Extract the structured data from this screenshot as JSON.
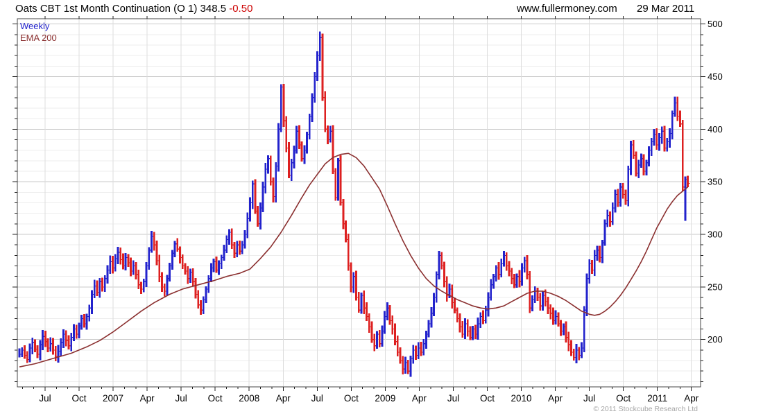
{
  "header": {
    "title_main": "Oats CBT 1st Month Continuation (O 1) 348.5",
    "change": "-0.50",
    "website": "www.fullermoney.com",
    "date": "29 Mar 2011"
  },
  "legend": {
    "series1": "Weekly",
    "series2": "EMA 200"
  },
  "footer": {
    "copyright": "© 2011 Stockcube Research Ltd"
  },
  "colors": {
    "up_bar": "#2222cc",
    "down_bar": "#dd2020",
    "ema_line": "#8b3030",
    "change_text": "#cc0000",
    "grid_minor": "#ededed",
    "grid_major": "#c9c9c9",
    "grid_vertical": "#dddddd",
    "axis": "#444444",
    "tick": "#222222",
    "label": "#000000",
    "copyright": "#a6a6a6"
  },
  "chart_data": {
    "type": "bar",
    "subtype": "weekly-price-bars-with-ema",
    "title": "Oats CBT 1st Month Continuation (O 1)",
    "last_price": 348.5,
    "change": -0.5,
    "frequency": "weekly",
    "x_span": "Apr 2006 - Mar 2011",
    "ylim": [
      155,
      505
    ],
    "y_major_ticks": [
      200,
      250,
      300,
      350,
      400,
      450,
      500
    ],
    "y_minor_step": 10,
    "grid": "on",
    "legend_position": "top-left",
    "x_tick_labels": [
      "Jul",
      "Oct",
      "2007",
      "Apr",
      "Jul",
      "Oct",
      "2008",
      "Apr",
      "Jul",
      "Oct",
      "2009",
      "Apr",
      "Jul",
      "Oct",
      "2010",
      "Apr",
      "Jul",
      "Oct",
      "2011",
      "Apr"
    ],
    "x_tick_weeks": [
      9.9,
      23.03,
      36.16,
      49.29,
      62.42,
      75.55,
      88.68,
      101.81,
      114.94,
      128.07,
      141.2,
      154.33,
      167.46,
      180.59,
      193.72,
      206.85,
      219.98,
      233.11,
      246.24,
      259.37
    ],
    "series": [
      {
        "name": "Weekly",
        "type": "price_bars",
        "closes": [
          186,
          190,
          185,
          181,
          192,
          197,
          191,
          186,
          195,
          203,
          198,
          192,
          196,
          190,
          184,
          189,
          197,
          205,
          199,
          194,
          202,
          210,
          205,
          213,
          220,
          215,
          222,
          230,
          243,
          251,
          245,
          255,
          250,
          258,
          266,
          274,
          268,
          277,
          283,
          276,
          270,
          278,
          273,
          265,
          270,
          262,
          252,
          248,
          255,
          270,
          285,
          298,
          290,
          275,
          260,
          250,
          246,
          258,
          270,
          282,
          291,
          286,
          278,
          270,
          265,
          258,
          264,
          255,
          243,
          233,
          228,
          238,
          248,
          258,
          268,
          274,
          266,
          272,
          278,
          285,
          295,
          302,
          290,
          282,
          290,
          284,
          290,
          300,
          315,
          330,
          348,
          322,
          310,
          325,
          345,
          362,
          372,
          350,
          336,
          365,
          400,
          440,
          408,
          382,
          356,
          368,
          380,
          398,
          385,
          372,
          380,
          395,
          412,
          430,
          450,
          470,
          487,
          430,
          400,
          390,
          398,
          360,
          335,
          370,
          330,
          310,
          295,
          270,
          250,
          260,
          240,
          228,
          242,
          230,
          222,
          212,
          200,
          194,
          205,
          196,
          208,
          222,
          230,
          218,
          210,
          198,
          188,
          180,
          172,
          178,
          170,
          182,
          190,
          185,
          192,
          188,
          196,
          205,
          215,
          225,
          240,
          262,
          280,
          270,
          255,
          242,
          248,
          235,
          228,
          220,
          212,
          205,
          215,
          208,
          202,
          210,
          205,
          215,
          222,
          218,
          228,
          240,
          252,
          260,
          268,
          262,
          272,
          280,
          270,
          265,
          258,
          252,
          260,
          255,
          268,
          275,
          262,
          230,
          238,
          246,
          240,
          232,
          242,
          236,
          230,
          225,
          218,
          222,
          215,
          208,
          212,
          202,
          195,
          188,
          183,
          190,
          185,
          192,
          228,
          258,
          272,
          266,
          280,
          285,
          278,
          292,
          310,
          318,
          312,
          325,
          338,
          330,
          345,
          338,
          332,
          362,
          385,
          375,
          358,
          366,
          372,
          360,
          368,
          380,
          388,
          395,
          385,
          392,
          398,
          382,
          388,
          396,
          415,
          425,
          412,
          405,
          345,
          352,
          348.5
        ]
      },
      {
        "name": "EMA 200",
        "type": "line",
        "points": [
          [
            0,
            174
          ],
          [
            6,
            177
          ],
          [
            13,
            182
          ],
          [
            20,
            187
          ],
          [
            26,
            193
          ],
          [
            31,
            199
          ],
          [
            36,
            207
          ],
          [
            41,
            216
          ],
          [
            47,
            227
          ],
          [
            52,
            235
          ],
          [
            58,
            243
          ],
          [
            63,
            248
          ],
          [
            69,
            252
          ],
          [
            75,
            256
          ],
          [
            80,
            260
          ],
          [
            85,
            263
          ],
          [
            89,
            267
          ],
          [
            93,
            277
          ],
          [
            97,
            288
          ],
          [
            101,
            302
          ],
          [
            105,
            318
          ],
          [
            109,
            335
          ],
          [
            112,
            347
          ],
          [
            115,
            357
          ],
          [
            118,
            367
          ],
          [
            121,
            373
          ],
          [
            124,
            376
          ],
          [
            127,
            377
          ],
          [
            130,
            373
          ],
          [
            133,
            365
          ],
          [
            136,
            354
          ],
          [
            139,
            343
          ],
          [
            142,
            327
          ],
          [
            145,
            310
          ],
          [
            148,
            294
          ],
          [
            151,
            280
          ],
          [
            154,
            268
          ],
          [
            157,
            258
          ],
          [
            160,
            251
          ],
          [
            163,
            246
          ],
          [
            166,
            242
          ],
          [
            169,
            238
          ],
          [
            172,
            235
          ],
          [
            175,
            232
          ],
          [
            178,
            230
          ],
          [
            181,
            229
          ],
          [
            184,
            230
          ],
          [
            187,
            232
          ],
          [
            190,
            236
          ],
          [
            193,
            240
          ],
          [
            196,
            244
          ],
          [
            199,
            246
          ],
          [
            202,
            246
          ],
          [
            205,
            244
          ],
          [
            208,
            241
          ],
          [
            211,
            237
          ],
          [
            214,
            232
          ],
          [
            217,
            227
          ],
          [
            220,
            224
          ],
          [
            222,
            223
          ],
          [
            224,
            224
          ],
          [
            226,
            227
          ],
          [
            228,
            231
          ],
          [
            230,
            236
          ],
          [
            232,
            242
          ],
          [
            234,
            249
          ],
          [
            236,
            257
          ],
          [
            238,
            265
          ],
          [
            240,
            274
          ],
          [
            242,
            284
          ],
          [
            244,
            295
          ],
          [
            246,
            306
          ],
          [
            248,
            315
          ],
          [
            250,
            324
          ],
          [
            252,
            331
          ],
          [
            254,
            337
          ],
          [
            256,
            341
          ],
          [
            258,
            345
          ]
        ]
      }
    ],
    "bar_overrides": {
      "257": {
        "low": 313
      }
    }
  }
}
